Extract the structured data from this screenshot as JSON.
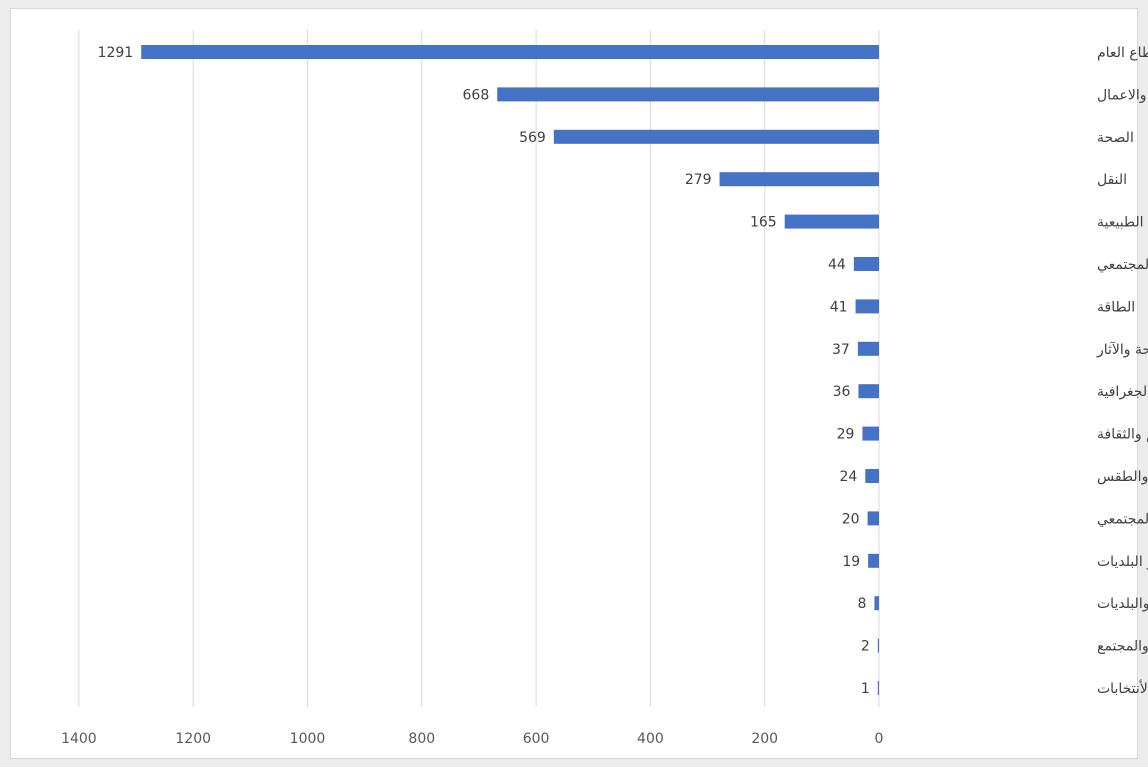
{
  "chart_data": {
    "type": "bar",
    "orientation": "horizontal",
    "x_axis_reversed": true,
    "grid": "vertical",
    "legend": "none",
    "xlim": [
      0,
      1400
    ],
    "x_ticks": [
      0,
      200,
      400,
      600,
      800,
      1000,
      1200,
      1400
    ],
    "bar_color": "#4472c4",
    "categories": [
      "الحكومة و القطاع العام",
      "الاقتصاد والاعمال",
      "الصحة",
      "النقل",
      "الثروة الزراعية و الموارد الطبيعية",
      "العدالة و السلم المجتمعي",
      "الطاقة",
      "السياحة والآثار",
      "الخرائط والمواقع الجغرافية",
      "التعليم والثقافة",
      "البيئة والطقس",
      "التنمية الأجتماعية و الأمان المجتمعي",
      "المحافظات و البلديات",
      "المحافظات والبلديات",
      "السكان والمجتمع",
      "التنمية السياسية و الأنتخابات"
    ],
    "values": [
      1291,
      668,
      569,
      279,
      165,
      44,
      41,
      37,
      36,
      29,
      24,
      20,
      19,
      8,
      2,
      1
    ],
    "title": "",
    "xlabel": "",
    "ylabel": ""
  }
}
